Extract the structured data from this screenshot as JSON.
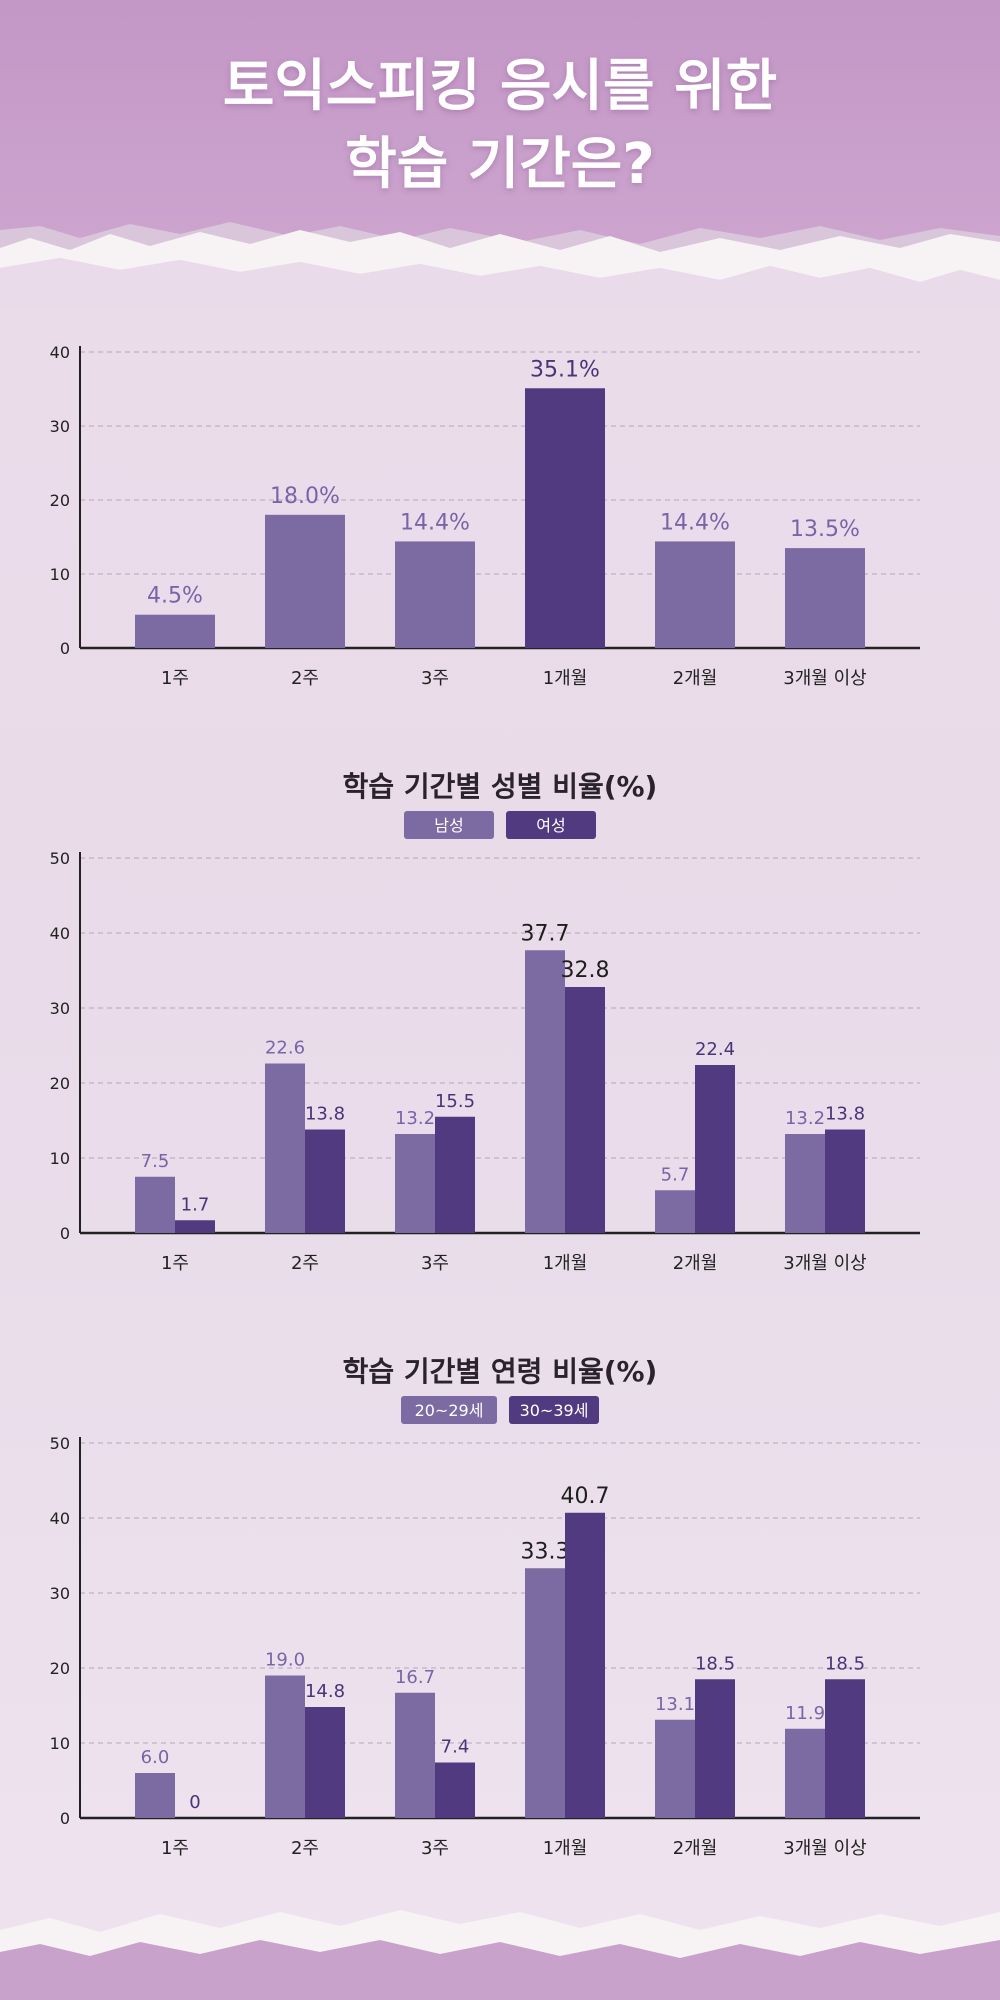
{
  "header": {
    "title_lines": [
      "토익스피킹 응시를 위한",
      "학습 기간은?"
    ]
  },
  "colors": {
    "light_bar": "#7c6ba3",
    "dark_bar": "#523a80",
    "label_light": "#7a64a8",
    "label_dark": "#4a3478",
    "label_black": "#1e1e1e",
    "header_bg": "#c9a0cb"
  },
  "chart_data": [
    {
      "type": "bar",
      "categories": [
        "1주",
        "2주",
        "3주",
        "1개월",
        "2개월",
        "3개월 이상"
      ],
      "values": [
        4.5,
        18.0,
        14.4,
        35.1,
        14.4,
        13.5
      ],
      "value_labels": [
        "4.5%",
        "18.0%",
        "14.4%",
        "35.1%",
        "14.4%",
        "13.5%"
      ],
      "highlight_index": 3,
      "title": "",
      "ylim": [
        0,
        40
      ],
      "yticks": [
        0,
        10,
        20,
        30,
        40
      ],
      "grid": true
    },
    {
      "type": "bar",
      "title": "학습 기간별 성별 비율(%)",
      "categories": [
        "1주",
        "2주",
        "3주",
        "1개월",
        "2개월",
        "3개월 이상"
      ],
      "series": [
        {
          "name": "남성",
          "values": [
            7.5,
            22.6,
            13.2,
            37.7,
            5.7,
            13.2
          ],
          "value_labels": [
            "7.5",
            "22.6",
            "13.2",
            "37.7",
            "5.7",
            "13.2"
          ]
        },
        {
          "name": "여성",
          "values": [
            1.7,
            13.8,
            15.5,
            32.8,
            22.4,
            13.8
          ],
          "value_labels": [
            "1.7",
            "13.8",
            "15.5",
            "32.8",
            "22.4",
            "13.8"
          ]
        }
      ],
      "ylim": [
        0,
        50
      ],
      "yticks": [
        0,
        10,
        20,
        30,
        40,
        50
      ],
      "legend": "top-center",
      "grid": true
    },
    {
      "type": "bar",
      "title": "학습 기간별 연령 비율(%)",
      "categories": [
        "1주",
        "2주",
        "3주",
        "1개월",
        "2개월",
        "3개월 이상"
      ],
      "series": [
        {
          "name": "20~29세",
          "values": [
            6.0,
            19.0,
            16.7,
            33.3,
            13.1,
            11.9
          ],
          "value_labels": [
            "6.0",
            "19.0",
            "16.7",
            "33.3",
            "13.1",
            "11.9"
          ]
        },
        {
          "name": "30~39세",
          "values": [
            0,
            14.8,
            7.4,
            40.7,
            18.5,
            18.5
          ],
          "value_labels": [
            "0",
            "14.8",
            "7.4",
            "40.7",
            "18.5",
            "18.5"
          ]
        }
      ],
      "ylim": [
        0,
        50
      ],
      "yticks": [
        0,
        10,
        20,
        30,
        40,
        50
      ],
      "legend": "top-center",
      "grid": true
    }
  ]
}
